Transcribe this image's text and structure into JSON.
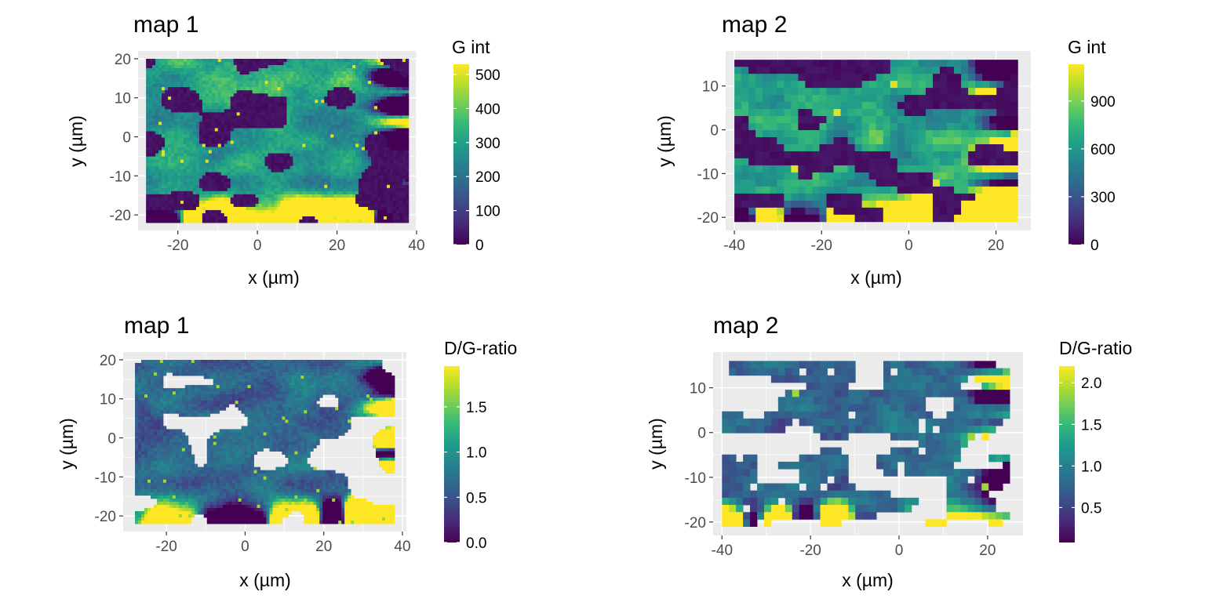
{
  "figure": {
    "panels": [
      {
        "title": "map 1",
        "xlabel": "x (µm)",
        "ylabel": "y (µm)",
        "legend_title": "G int"
      },
      {
        "title": "map 2",
        "xlabel": "x (µm)",
        "ylabel": "y (µm)",
        "legend_title": "G int"
      },
      {
        "title": "map 1",
        "xlabel": "x (µm)",
        "ylabel": "y (µm)",
        "legend_title": "D/G-ratio"
      },
      {
        "title": "map 2",
        "xlabel": "x (µm)",
        "ylabel": "y (µm)",
        "legend_title": "D/G-ratio"
      }
    ]
  },
  "palette": [
    "#440154",
    "#482878",
    "#3e4989",
    "#31688e",
    "#26828e",
    "#1f9e89",
    "#35b779",
    "#6ece58",
    "#b5de2b",
    "#fde725"
  ],
  "colors": {
    "panel_background": "#ebebeb",
    "grid_line": "#ffffff",
    "missing_value": "#ffffff"
  },
  "chart_data": [
    {
      "type": "heatmap",
      "title": "map 1",
      "xlabel": "x (µm)",
      "ylabel": "y (µm)",
      "xlim": [
        -30,
        40
      ],
      "ylim": [
        -24,
        22
      ],
      "x_range": [
        -28,
        38
      ],
      "y_range": [
        -22,
        20
      ],
      "x_ticks": [
        -20,
        0,
        20,
        40
      ],
      "y_ticks": [
        -20,
        -10,
        0,
        10,
        20
      ],
      "legend": {
        "title": "G int",
        "min": 0,
        "max": 530,
        "ticks": [
          0,
          100,
          200,
          300,
          400,
          500
        ]
      },
      "grid": true
    },
    {
      "type": "heatmap",
      "title": "map 2",
      "xlabel": "x (µm)",
      "ylabel": "y (µm)",
      "xlim": [
        -42,
        28
      ],
      "ylim": [
        -23,
        18
      ],
      "x_range": [
        -40,
        25
      ],
      "y_range": [
        -21,
        16
      ],
      "x_ticks": [
        -40,
        -20,
        0,
        20
      ],
      "y_ticks": [
        -20,
        -10,
        0,
        10
      ],
      "legend": {
        "title": "G int",
        "min": 0,
        "max": 1130,
        "ticks": [
          0,
          300,
          600,
          900
        ]
      },
      "grid": true
    },
    {
      "type": "heatmap",
      "title": "map 1",
      "xlabel": "x (µm)",
      "ylabel": "y (µm)",
      "xlim": [
        -31,
        41
      ],
      "ylim": [
        -24,
        22
      ],
      "x_range": [
        -28,
        38
      ],
      "y_range": [
        -22,
        20
      ],
      "x_ticks": [
        -20,
        0,
        20,
        40
      ],
      "y_ticks": [
        -20,
        -10,
        0,
        10,
        20
      ],
      "legend": {
        "title": "D/G-ratio",
        "min": 0,
        "max": 1.95,
        "ticks": [
          0.0,
          0.5,
          1.0,
          1.5
        ]
      },
      "grid": true,
      "missing_values": "drawn as empty cells"
    },
    {
      "type": "heatmap",
      "title": "map 2",
      "xlabel": "x (µm)",
      "ylabel": "y (µm)",
      "xlim": [
        -42,
        28
      ],
      "ylim": [
        -23,
        18
      ],
      "x_range": [
        -40,
        25
      ],
      "y_range": [
        -21,
        16
      ],
      "x_ticks": [
        -40,
        -20,
        0,
        20
      ],
      "y_ticks": [
        -20,
        -10,
        0,
        10
      ],
      "legend": {
        "title": "D/G-ratio",
        "min": 0.08,
        "max": 2.2,
        "ticks": [
          0.5,
          1.0,
          1.5,
          2.0
        ]
      },
      "grid": true,
      "missing_values": "drawn as empty cells"
    }
  ]
}
